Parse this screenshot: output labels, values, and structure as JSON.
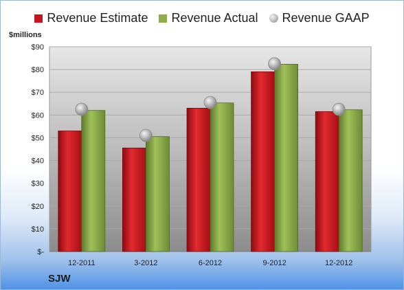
{
  "chart_data": {
    "type": "bar",
    "title": "",
    "xlabel": "",
    "ylabel": "$millions",
    "ylim": [
      0,
      90
    ],
    "yticks": [
      "$-",
      "$10",
      "$20",
      "$30",
      "$40",
      "$50",
      "$60",
      "$70",
      "$80",
      "$90"
    ],
    "categories": [
      "12-2011",
      "3-2012",
      "6-2012",
      "9-2012",
      "12-2012"
    ],
    "series": [
      {
        "name": "Revenue Estimate",
        "type": "bar",
        "color": "#c8141e",
        "values": [
          53,
          45.5,
          63,
          79,
          61.5
        ]
      },
      {
        "name": "Revenue Actual",
        "type": "bar",
        "color": "#8cad4a",
        "values": [
          62,
          50.5,
          65.3,
          82.3,
          62.3
        ]
      },
      {
        "name": "Revenue GAAP",
        "type": "marker",
        "color": "#a8a8a8",
        "values": [
          62.5,
          51,
          65.5,
          82.5,
          62.5
        ]
      }
    ],
    "grid": true,
    "legend": "top"
  },
  "company": "SJW"
}
